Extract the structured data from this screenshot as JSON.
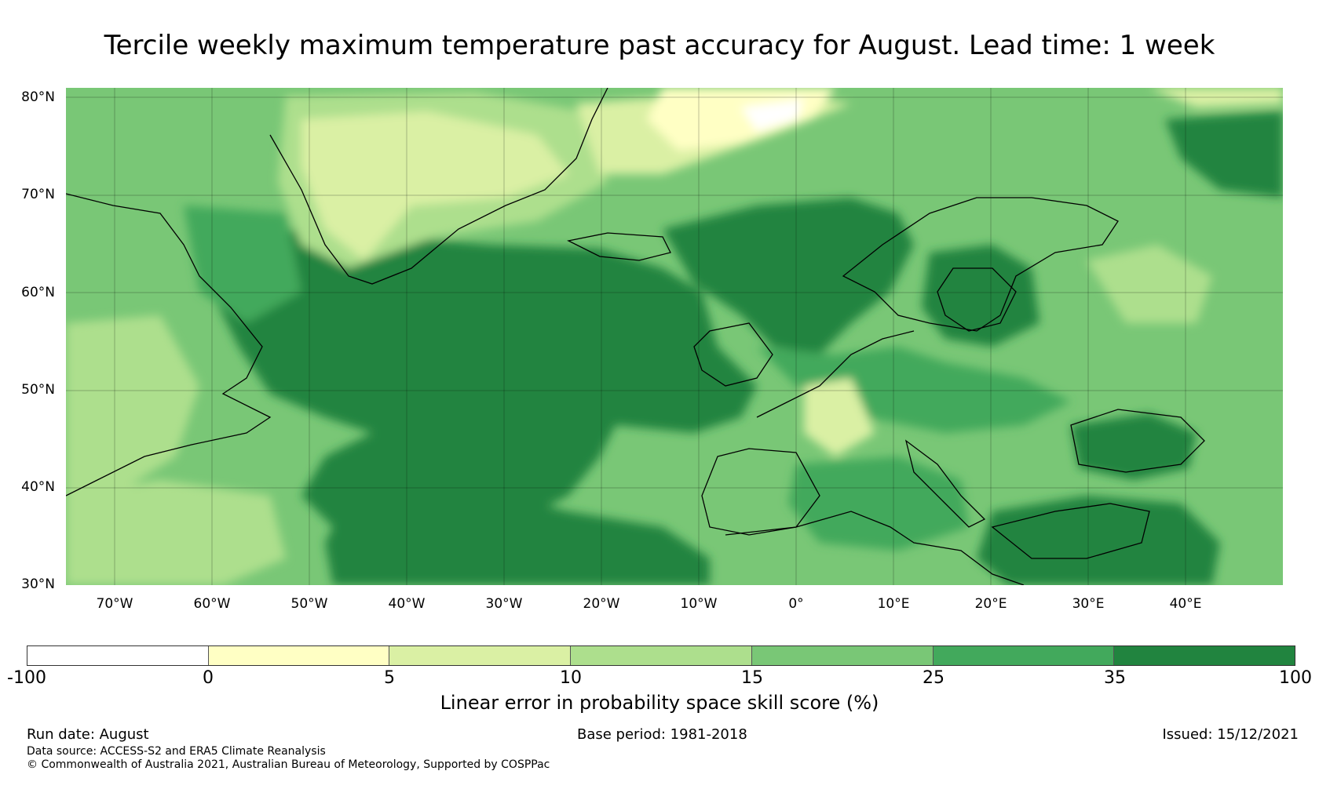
{
  "title": "Tercile weekly maximum temperature past accuracy for August. Lead time: 1 week",
  "map": {
    "lat_labels": [
      "80°N",
      "70°N",
      "60°N",
      "50°N",
      "40°N",
      "30°N"
    ],
    "lon_labels": [
      "70°W",
      "60°W",
      "50°W",
      "40°W",
      "30°W",
      "20°W",
      "10°W",
      "0°",
      "10°E",
      "20°E",
      "30°E",
      "40°E"
    ],
    "lat_range": [
      30,
      81
    ],
    "lon_range": [
      -75,
      50
    ]
  },
  "colorbar": {
    "ticks": [
      "-100",
      "0",
      "5",
      "10",
      "15",
      "25",
      "35",
      "100"
    ],
    "colors": [
      "#ffffff",
      "#ffffc4",
      "#daf0a4",
      "#addf8d",
      "#79c776",
      "#42a95c",
      "#21843f"
    ],
    "label": "Linear error in probability space skill score (%)"
  },
  "footer": {
    "run_date": "Run date: August",
    "base_period": "Base period: 1981-2018",
    "issued": "Issued: 15/12/2021",
    "data_source": "Data source: ACCESS-S2 and ERA5 Climate Reanalysis",
    "copyright": "© Commonwealth of Australia 2021, Australian Bureau of Meteorology, Supported by COSPPac"
  }
}
